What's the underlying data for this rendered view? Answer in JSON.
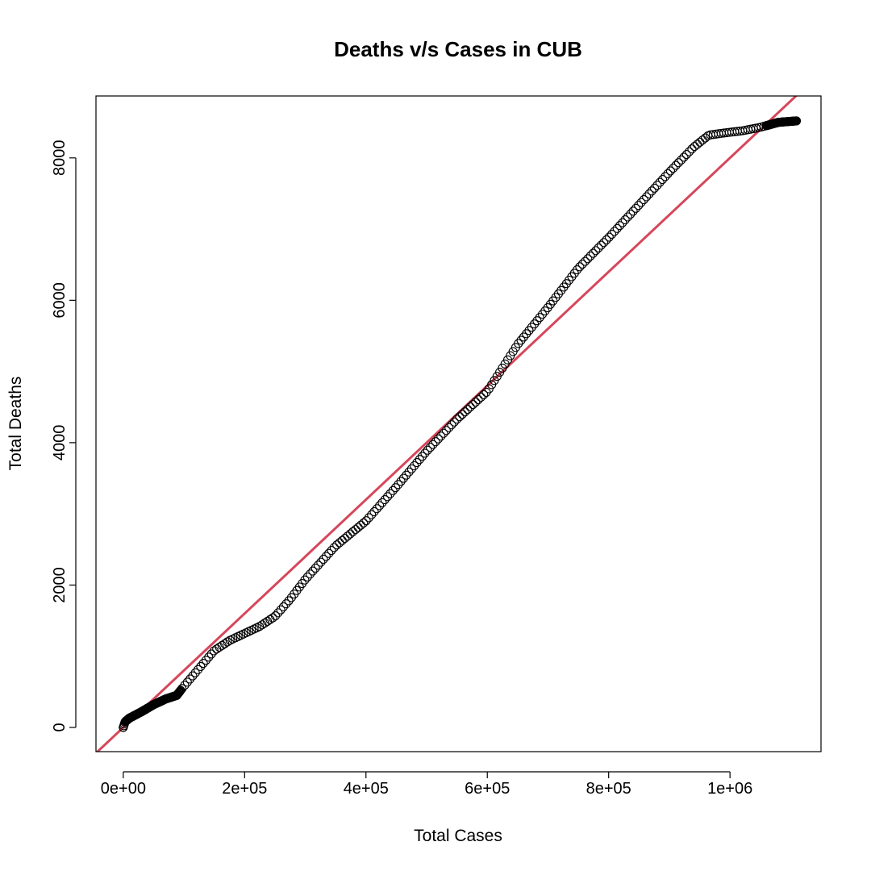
{
  "chart_data": {
    "type": "scatter",
    "title": "Deaths v/s Cases in CUB",
    "xlabel": "Total Cases",
    "ylabel": "Total Deaths",
    "xlim": [
      -45000,
      1150000
    ],
    "ylim": [
      -340,
      8870
    ],
    "x_ticks": [
      {
        "value": 0,
        "label": "0e+00"
      },
      {
        "value": 200000,
        "label": "2e+05"
      },
      {
        "value": 400000,
        "label": "4e+05"
      },
      {
        "value": 600000,
        "label": "6e+05"
      },
      {
        "value": 800000,
        "label": "8e+05"
      },
      {
        "value": 1000000,
        "label": "1e+06"
      }
    ],
    "y_ticks": [
      {
        "value": 0,
        "label": "0"
      },
      {
        "value": 2000,
        "label": "2000"
      },
      {
        "value": 4000,
        "label": "4000"
      },
      {
        "value": 6000,
        "label": "6000"
      },
      {
        "value": 8000,
        "label": "8000"
      }
    ],
    "grid": false,
    "legend": "none",
    "point_color": "#000000",
    "point_style": "open-circle",
    "curve_knots": [
      [
        0,
        0
      ],
      [
        3000,
        80
      ],
      [
        10000,
        130
      ],
      [
        30000,
        220
      ],
      [
        50000,
        320
      ],
      [
        70000,
        400
      ],
      [
        88000,
        450
      ],
      [
        100000,
        580
      ],
      [
        120000,
        780
      ],
      [
        150000,
        1080
      ],
      [
        175000,
        1220
      ],
      [
        200000,
        1320
      ],
      [
        225000,
        1420
      ],
      [
        250000,
        1560
      ],
      [
        275000,
        1800
      ],
      [
        300000,
        2080
      ],
      [
        350000,
        2550
      ],
      [
        400000,
        2900
      ],
      [
        450000,
        3380
      ],
      [
        500000,
        3880
      ],
      [
        550000,
        4330
      ],
      [
        600000,
        4720
      ],
      [
        625000,
        5050
      ],
      [
        650000,
        5380
      ],
      [
        700000,
        5900
      ],
      [
        750000,
        6450
      ],
      [
        800000,
        6880
      ],
      [
        850000,
        7340
      ],
      [
        900000,
        7800
      ],
      [
        940000,
        8150
      ],
      [
        965000,
        8320
      ],
      [
        990000,
        8350
      ],
      [
        1020000,
        8380
      ],
      [
        1050000,
        8430
      ],
      [
        1080000,
        8500
      ],
      [
        1110000,
        8520
      ]
    ],
    "point_spacing": 4400,
    "reference_line": {
      "color": "#d6475a",
      "intercept": 0,
      "slope": 0.008
    }
  }
}
